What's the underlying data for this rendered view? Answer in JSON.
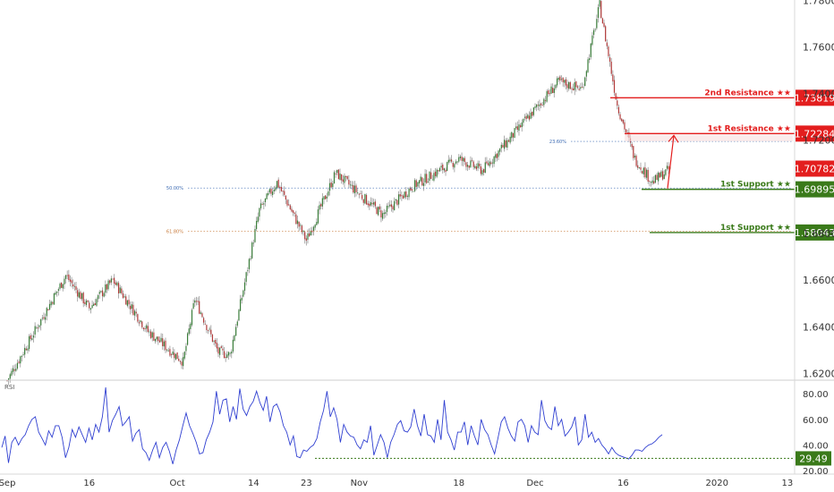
{
  "chart_data": [
    {
      "type": "candlestick",
      "title": "",
      "xlabel": "",
      "ylabel": "",
      "ylim": [
        1.615,
        1.782
      ],
      "grid": false,
      "x_ticks": [
        "Sep",
        "16",
        "Oct",
        "14",
        "23",
        "Nov",
        "18",
        "Dec",
        "16",
        "2020",
        "13"
      ],
      "y_ticks": [
        "1.78000",
        "1.76000",
        "1.74000",
        "1.72000",
        "1.68000",
        "1.66000",
        "1.64000",
        "1.62000"
      ],
      "key_points": [
        {
          "date": "Sep 02",
          "close": 1.617
        },
        {
          "date": "Sep 12",
          "close": 1.662
        },
        {
          "date": "Sep 16",
          "close": 1.648
        },
        {
          "date": "Sep 20",
          "close": 1.66
        },
        {
          "date": "Sep 26",
          "close": 1.638
        },
        {
          "date": "Oct 02",
          "close": 1.625
        },
        {
          "date": "Oct 04",
          "close": 1.652
        },
        {
          "date": "Oct 08",
          "close": 1.629
        },
        {
          "date": "Oct 10",
          "close": 1.628
        },
        {
          "date": "Oct 15",
          "close": 1.69
        },
        {
          "date": "Oct 18",
          "close": 1.702
        },
        {
          "date": "Oct 23",
          "close": 1.677
        },
        {
          "date": "Oct 28",
          "close": 1.706
        },
        {
          "date": "Nov 05",
          "close": 1.688
        },
        {
          "date": "Nov 10",
          "close": 1.7
        },
        {
          "date": "Nov 18",
          "close": 1.712
        },
        {
          "date": "Nov 22",
          "close": 1.707
        },
        {
          "date": "Dec 05",
          "close": 1.745
        },
        {
          "date": "Dec 09",
          "close": 1.742
        },
        {
          "date": "Dec 12",
          "close": 1.778
        },
        {
          "date": "Dec 15",
          "close": 1.735
        },
        {
          "date": "Dec 18",
          "close": 1.712
        },
        {
          "date": "Dec 21",
          "close": 1.702
        },
        {
          "date": "Dec 24",
          "close": 1.7078
        }
      ],
      "levels": [
        {
          "label": "2nd Resistance ★★",
          "value": 1.73819,
          "tag": "1.73819",
          "color": "#e31e1e"
        },
        {
          "label": "1st Resistance ★★",
          "value": 1.72284,
          "tag": "1.72284",
          "color": "#e31e1e"
        },
        {
          "label": "1st Support ★★",
          "value": 1.69895,
          "tag": "1.69895",
          "color": "#3a7a1a"
        },
        {
          "label": "1st Support ★★",
          "value": 1.68043,
          "tag": "1.68043",
          "color": "#3a7a1a"
        }
      ],
      "current_price": {
        "value": 1.70782,
        "tag": "1.70782",
        "color": "#e31e1e"
      },
      "fibonacci": [
        {
          "label": "23.60%",
          "value": 1.7195,
          "color": "#3d6bb3"
        },
        {
          "label": "50.00%",
          "value": 1.6995,
          "color": "#3d6bb3"
        },
        {
          "label": "61.80%",
          "value": 1.681,
          "color": "#c87a3a"
        }
      ],
      "colors": {
        "up": "#3a7d3a",
        "down": "#b23a3a",
        "wick": "#999999"
      }
    },
    {
      "type": "line",
      "title": "RSI",
      "ylim": [
        20,
        90
      ],
      "y_ticks": [
        "80.00",
        "60.00",
        "40.00",
        "20.00"
      ],
      "series": [
        {
          "name": "RSI",
          "values": [
            38,
            47,
            26,
            42,
            46,
            40,
            45,
            48,
            55,
            60,
            62,
            50,
            45,
            40,
            51,
            46,
            55,
            55,
            46,
            30,
            38,
            52,
            46,
            54,
            48,
            42,
            53,
            44,
            56,
            50,
            62,
            85,
            50,
            59,
            64,
            70,
            55,
            58,
            62,
            43,
            49,
            52,
            37,
            34,
            28,
            36,
            42,
            30,
            38,
            42,
            35,
            25,
            36,
            44,
            55,
            65,
            55,
            49,
            42,
            33,
            34,
            44,
            50,
            58,
            82,
            64,
            75,
            76,
            58,
            70,
            60,
            84,
            68,
            63,
            70,
            74,
            82,
            73,
            67,
            78,
            58,
            70,
            72,
            66,
            55,
            50,
            40,
            47,
            31,
            30,
            36,
            35,
            38,
            40,
            45,
            58,
            67,
            82,
            62,
            69,
            60,
            42,
            56,
            50,
            47,
            46,
            40,
            37,
            44,
            42,
            55,
            32,
            40,
            48,
            42,
            30,
            42,
            48,
            56,
            59,
            51,
            50,
            54,
            68,
            55,
            47,
            64,
            48,
            47,
            42,
            60,
            44,
            75,
            50,
            44,
            36,
            50,
            50,
            58,
            40,
            55,
            47,
            40,
            60,
            52,
            48,
            40,
            33,
            45,
            58,
            62,
            53,
            47,
            43,
            58,
            60,
            55,
            42,
            55,
            50,
            48,
            75,
            59,
            54,
            52,
            70,
            55,
            60,
            47,
            50,
            54,
            62,
            40,
            44,
            64,
            46,
            50,
            42,
            45,
            40,
            37,
            33,
            38,
            34,
            32,
            31,
            30,
            29,
            32,
            36,
            36,
            35,
            38,
            40,
            41,
            43,
            46,
            48
          ]
        }
      ],
      "reference_line": {
        "value": 29.49,
        "tag": "29.49",
        "color": "#3a7a1a"
      },
      "colors": {
        "line": "#2f3fd1"
      }
    }
  ]
}
